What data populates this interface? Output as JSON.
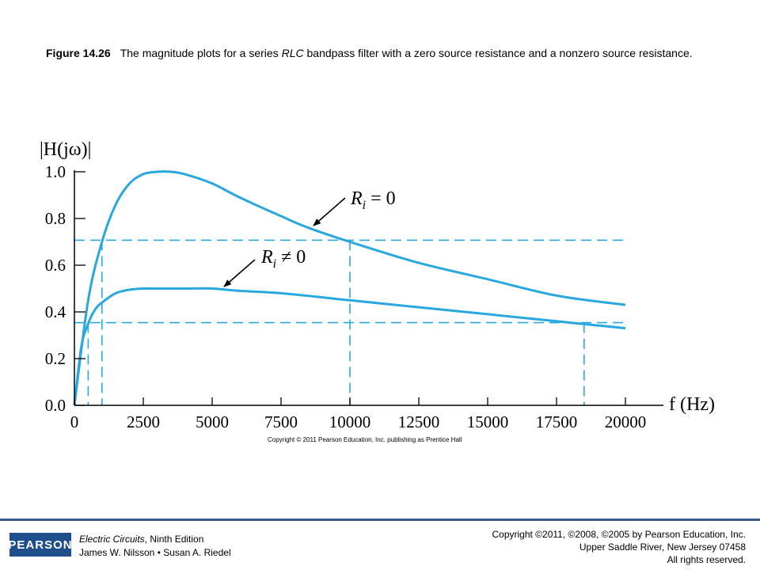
{
  "caption": {
    "figure": "Figure 14.26",
    "text_pre": "The magnitude plots for a series ",
    "text_italic": "RLC",
    "text_post": " bandpass filter with a zero source resistance and a nonzero source resistance."
  },
  "chart_data": {
    "type": "line",
    "title": "",
    "xlabel": "f (Hz)",
    "ylabel": "|H(jω)|",
    "xlim": [
      0,
      20000
    ],
    "ylim": [
      0,
      1.0
    ],
    "x_ticks": [
      "0",
      "2500",
      "5000",
      "7500",
      "10000",
      "12500",
      "15000",
      "17500",
      "20000"
    ],
    "y_ticks": [
      "0.0",
      "0.2",
      "0.4",
      "0.6",
      "0.8",
      "1.0"
    ],
    "grid": false,
    "series": [
      {
        "name": "Ri = 0",
        "label_var": "R",
        "label_sub": "i",
        "label_op": "= 0",
        "x": [
          0,
          500,
          1000,
          1500,
          2000,
          2500,
          3000,
          3500,
          4000,
          5000,
          6000,
          7500,
          8500,
          10000,
          12500,
          15000,
          17500,
          20000
        ],
        "values": [
          0.0,
          0.45,
          0.7,
          0.86,
          0.95,
          0.99,
          1.0,
          1.0,
          0.99,
          0.95,
          0.89,
          0.81,
          0.76,
          0.7,
          0.61,
          0.54,
          0.47,
          0.43
        ]
      },
      {
        "name": "Ri ≠ 0",
        "label_var": "R",
        "label_sub": "i",
        "label_op": "≠ 0",
        "x": [
          0,
          250,
          500,
          750,
          1000,
          1500,
          2000,
          2500,
          3000,
          4000,
          5000,
          6000,
          7500,
          10000,
          12500,
          15000,
          17500,
          20000
        ],
        "values": [
          0.0,
          0.25,
          0.35,
          0.41,
          0.44,
          0.48,
          0.495,
          0.5,
          0.5,
          0.5,
          0.5,
          0.49,
          0.48,
          0.45,
          0.42,
          0.39,
          0.36,
          0.33
        ]
      }
    ],
    "reference_lines": {
      "horizontal": [
        0.707,
        0.354
      ],
      "vertical": [
        500,
        1000,
        10000,
        18500
      ]
    },
    "colors": {
      "curve": "#29a8df",
      "dashed": "#29a8df",
      "axis": "#000000"
    },
    "copyright": "Copyright © 2011 Pearson Education, Inc. publishing as Prentice Hall"
  },
  "footer": {
    "logo": "PEARSON",
    "book_title": "Electric Circuits",
    "book_edition": ", Ninth Edition",
    "authors": "James W. Nilsson • Susan A. Riedel",
    "rights_line1": "Copyright ©2011, ©2008, ©2005 by Pearson Education, Inc.",
    "rights_line2": "Upper Saddle River, New Jersey 07458",
    "rights_line3": "All rights reserved."
  }
}
